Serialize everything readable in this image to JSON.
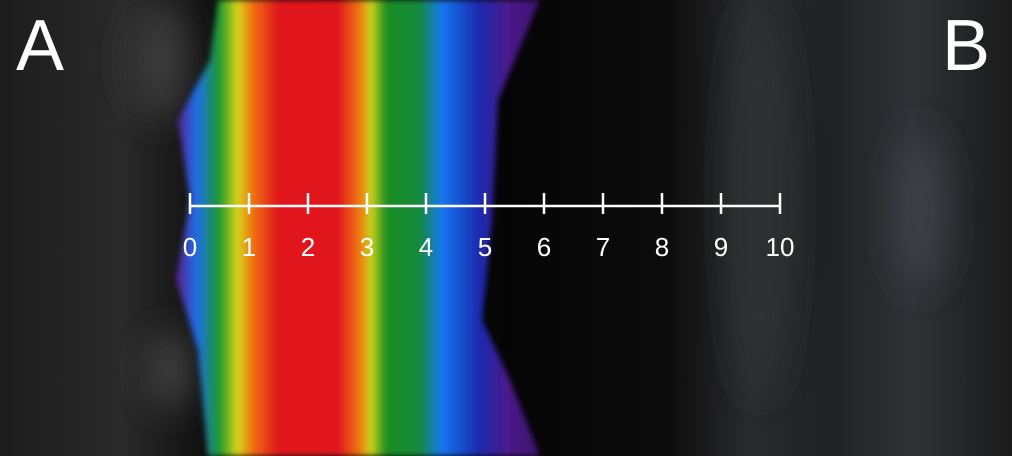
{
  "panel_labels": [
    "A",
    "B"
  ],
  "scale": {
    "ticks": [
      0,
      1,
      2,
      3,
      4,
      5,
      6,
      7,
      8,
      9,
      10
    ]
  }
}
